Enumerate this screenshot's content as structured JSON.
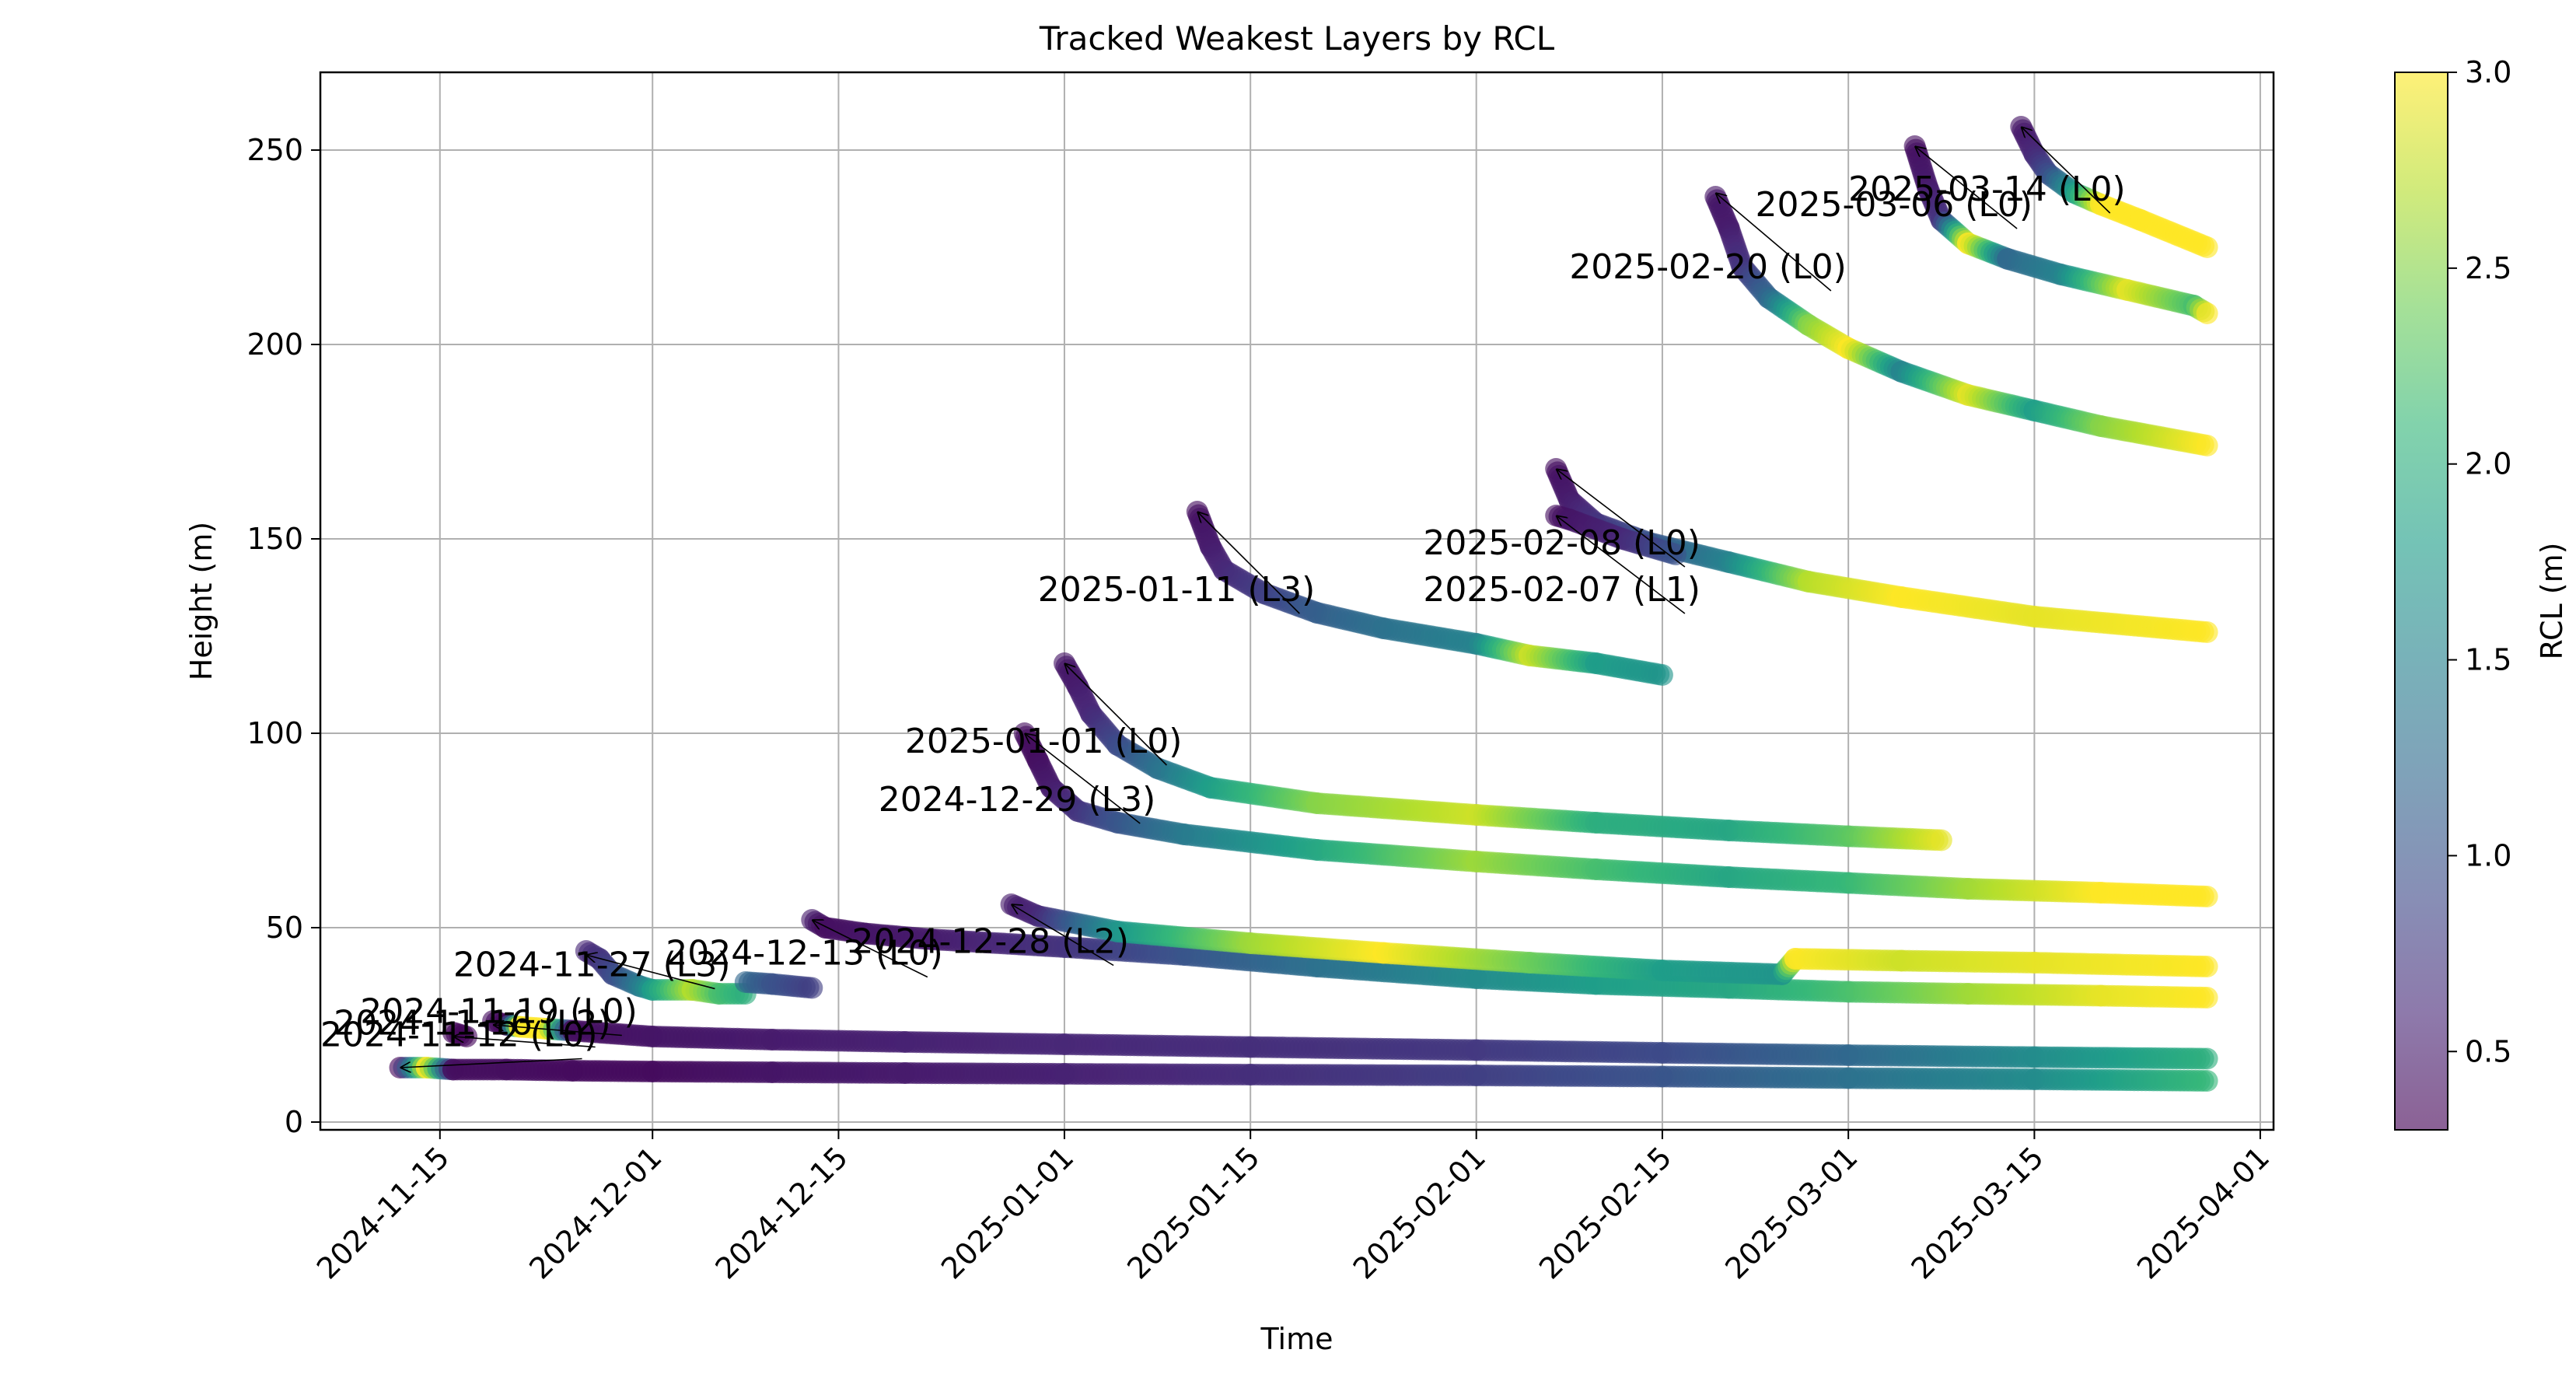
{
  "chart_data": {
    "type": "scatter",
    "title": "Tracked Weakest Layers by RCL",
    "xlabel": "Time",
    "ylabel": "Height (m)",
    "xlim": [
      "2024-11-06",
      "2025-04-02"
    ],
    "ylim": [
      -2,
      270
    ],
    "x_ticks": [
      "2024-11-15",
      "2024-12-01",
      "2024-12-15",
      "2025-01-01",
      "2025-01-15",
      "2025-02-01",
      "2025-02-15",
      "2025-03-01",
      "2025-03-15",
      "2025-04-01"
    ],
    "y_ticks": [
      0,
      50,
      100,
      150,
      200,
      250
    ],
    "grid": true,
    "colorbar": {
      "label": "RCL (m)",
      "colormap": "viridis",
      "range": [
        0.3,
        3.0
      ],
      "ticks": [
        "0.5",
        "1.0",
        "1.5",
        "2.0",
        "2.5",
        "3.0"
      ],
      "tick_values": [
        0.5,
        1.0,
        1.5,
        2.0,
        2.5,
        3.0
      ]
    },
    "annotations": [
      {
        "text": "2024-11-12 (L0)",
        "text_x": "2024-11-06",
        "text_y": 17.5,
        "arrow_to_x": "2024-11-12",
        "arrow_to_y": 14
      },
      {
        "text": "2024-11-16 (L2)",
        "text_x": "2024-11-07",
        "text_y": 20.5,
        "arrow_to_x": "2024-11-16",
        "arrow_to_y": 22
      },
      {
        "text": "2024-11-19 (L0)",
        "text_x": "2024-11-09",
        "text_y": 23.5,
        "arrow_to_x": "2024-11-19",
        "arrow_to_y": 25
      },
      {
        "text": "2024-11-27 (L3)",
        "text_x": "2024-11-16",
        "text_y": 35.5,
        "arrow_to_x": "2024-11-26",
        "arrow_to_y": 43
      },
      {
        "text": "2024-12-13 (L0)",
        "text_x": "2024-12-02",
        "text_y": 38.5,
        "arrow_to_x": "2024-12-13",
        "arrow_to_y": 52
      },
      {
        "text": "2024-12-28 (L2)",
        "text_x": "2024-12-16",
        "text_y": 41.5,
        "arrow_to_x": "2024-12-28",
        "arrow_to_y": 56
      },
      {
        "text": "2024-12-29 (L3)",
        "text_x": "2024-12-18",
        "text_y": 78,
        "arrow_to_x": "2024-12-29",
        "arrow_to_y": 100
      },
      {
        "text": "2025-01-01 (L0)",
        "text_x": "2024-12-20",
        "text_y": 93,
        "arrow_to_x": "2025-01-01",
        "arrow_to_y": 118
      },
      {
        "text": "2025-01-11 (L3)",
        "text_x": "2024-12-30",
        "text_y": 132,
        "arrow_to_x": "2025-01-11",
        "arrow_to_y": 157
      },
      {
        "text": "2025-02-08 (L0)",
        "text_x": "2025-01-28",
        "text_y": 144,
        "arrow_to_x": "2025-02-07",
        "arrow_to_y": 168
      },
      {
        "text": "2025-02-07 (L1)",
        "text_x": "2025-01-28",
        "text_y": 132,
        "arrow_to_x": "2025-02-07",
        "arrow_to_y": 156
      },
      {
        "text": "2025-02-20 (L0)",
        "text_x": "2025-02-08",
        "text_y": 215,
        "arrow_to_x": "2025-02-19",
        "arrow_to_y": 239
      },
      {
        "text": "2025-03-06 (L0)",
        "text_x": "2025-02-22",
        "text_y": 231,
        "arrow_to_x": "2025-03-06",
        "arrow_to_y": 251
      },
      {
        "text": "2025-03-14 (L0)",
        "text_x": "2025-03-01",
        "text_y": 235,
        "arrow_to_x": "2025-03-14",
        "arrow_to_y": 256
      }
    ],
    "series": [
      {
        "name": "2024-11-12 (L0)",
        "x": [
          "2024-11-12",
          "2024-11-14",
          "2024-11-16",
          "2024-11-20",
          "2024-11-25",
          "2024-12-01",
          "2024-12-10",
          "2024-12-20",
          "2025-01-01",
          "2025-01-15",
          "2025-02-01",
          "2025-02-15",
          "2025-03-01",
          "2025-03-15",
          "2025-03-28"
        ],
        "y": [
          14,
          14,
          13.5,
          13.5,
          13.2,
          13,
          12.8,
          12.6,
          12.4,
          12.2,
          12,
          11.7,
          11.3,
          11,
          10.6
        ],
        "rcl": [
          0.35,
          3.0,
          0.4,
          0.4,
          0.38,
          0.38,
          0.45,
          0.5,
          0.55,
          0.65,
          0.8,
          1.0,
          1.3,
          1.6,
          2.1
        ]
      },
      {
        "name": "2024-11-16 (L2)",
        "x": [
          "2024-11-16",
          "2024-11-17"
        ],
        "y": [
          23,
          22
        ],
        "rcl": [
          0.35,
          0.35
        ]
      },
      {
        "name": "2024-11-19 (L0)",
        "x": [
          "2024-11-19",
          "2024-11-20",
          "2024-11-21",
          "2024-11-23",
          "2024-11-25",
          "2024-12-01",
          "2024-12-10",
          "2024-12-20",
          "2025-01-01",
          "2025-01-15",
          "2025-02-01",
          "2025-02-15",
          "2025-03-01",
          "2025-03-15",
          "2025-03-28"
        ],
        "y": [
          26,
          25,
          24.5,
          24,
          23.5,
          22,
          21.2,
          20.6,
          20,
          19.3,
          18.5,
          17.8,
          17.2,
          16.7,
          16.3
        ],
        "rcl": [
          0.4,
          0.35,
          3.0,
          3.0,
          0.4,
          0.45,
          0.5,
          0.55,
          0.6,
          0.65,
          0.75,
          0.9,
          1.2,
          1.6,
          2.0
        ]
      },
      {
        "name": "2024-11-27 (L3)",
        "x": [
          "2024-11-26",
          "2024-11-27",
          "2024-11-28",
          "2024-11-30",
          "2024-12-01",
          "2024-12-04",
          "2024-12-06",
          "2024-12-08"
        ],
        "y": [
          44,
          42,
          38,
          35,
          34,
          34,
          33,
          33
        ],
        "rcl": [
          0.6,
          0.7,
          0.9,
          1.4,
          1.8,
          2.7,
          2.2,
          2.0
        ]
      },
      {
        "name": "2024-12-13 (L0)",
        "x": [
          "2024-12-08",
          "2024-12-10",
          "2024-12-13"
        ],
        "y": [
          36,
          35.5,
          34.5
        ],
        "rcl": [
          1.2,
          1.0,
          0.8
        ]
      },
      {
        "name": "2024-12-28 (L2)",
        "x": [
          "2024-12-13",
          "2024-12-14",
          "2024-12-17",
          "2024-12-22",
          "2025-01-01",
          "2025-01-10",
          "2025-01-20",
          "2025-02-01",
          "2025-02-10",
          "2025-02-20",
          "2025-03-01",
          "2025-03-10",
          "2025-03-20",
          "2025-03-28"
        ],
        "y": [
          52,
          50,
          48.5,
          47,
          45,
          43,
          40,
          37,
          35.5,
          34.5,
          33.5,
          33,
          32.5,
          32
        ],
        "rcl": [
          0.5,
          0.4,
          0.45,
          0.5,
          0.7,
          1.0,
          1.3,
          1.6,
          1.8,
          1.9,
          2.2,
          2.6,
          2.9,
          3.0
        ]
      },
      {
        "name": "2024-12-28 (L2) b",
        "x": [
          "2024-12-28",
          "2024-12-30",
          "2025-01-05",
          "2025-01-15",
          "2025-01-25",
          "2025-02-05",
          "2025-02-15",
          "2025-02-24",
          "2025-02-25",
          "2025-03-05",
          "2025-03-15",
          "2025-03-28"
        ],
        "y": [
          56,
          53,
          49,
          46,
          43.5,
          41,
          39,
          38,
          42,
          41.5,
          41,
          40
        ],
        "rcl": [
          0.5,
          0.6,
          1.7,
          2.6,
          3.0,
          2.4,
          1.8,
          1.7,
          3.0,
          2.8,
          2.9,
          3.0
        ]
      },
      {
        "name": "2024-12-29 (L3)",
        "x": [
          "2024-12-29",
          "2024-12-30",
          "2024-12-31",
          "2025-01-02",
          "2025-01-05",
          "2025-01-10",
          "2025-01-20",
          "2025-02-01",
          "2025-02-10",
          "2025-02-20",
          "2025-03-01",
          "2025-03-10",
          "2025-03-20",
          "2025-03-28"
        ],
        "y": [
          100,
          93,
          86,
          80,
          77,
          74,
          70,
          67,
          65,
          63,
          61.5,
          60,
          59,
          58
        ],
        "rcl": [
          0.4,
          0.4,
          0.5,
          0.7,
          1.0,
          1.4,
          1.9,
          2.6,
          2.2,
          1.9,
          2.1,
          2.6,
          3.0,
          3.0
        ]
      },
      {
        "name": "2025-01-01 (L0)",
        "x": [
          "2025-01-01",
          "2025-01-02",
          "2025-01-03",
          "2025-01-05",
          "2025-01-08",
          "2025-01-12",
          "2025-01-20",
          "2025-02-01",
          "2025-02-10",
          "2025-02-20",
          "2025-03-01",
          "2025-03-08"
        ],
        "y": [
          118,
          112,
          105,
          97,
          91,
          86,
          82,
          79,
          77,
          75,
          73.5,
          72.5
        ],
        "rcl": [
          0.45,
          0.5,
          0.6,
          0.9,
          1.3,
          1.8,
          2.5,
          2.8,
          2.0,
          1.9,
          2.3,
          2.9
        ]
      },
      {
        "name": "2025-01-11 (L3)",
        "x": [
          "2025-01-11",
          "2025-01-12",
          "2025-01-13",
          "2025-01-16",
          "2025-01-20",
          "2025-01-25",
          "2025-02-01",
          "2025-02-05",
          "2025-02-10",
          "2025-02-15"
        ],
        "y": [
          157,
          148,
          142,
          136,
          131,
          127,
          123,
          120,
          118,
          115
        ],
        "rcl": [
          0.4,
          0.5,
          0.6,
          0.8,
          1.1,
          1.3,
          1.5,
          2.8,
          1.8,
          1.7
        ]
      },
      {
        "name": "2025-02-08 (L0)",
        "x": [
          "2025-02-07",
          "2025-02-08",
          "2025-02-10",
          "2025-02-14",
          "2025-02-20",
          "2025-02-26",
          "2025-03-05",
          "2025-03-15",
          "2025-03-28"
        ],
        "y": [
          168,
          160,
          154,
          149,
          144,
          139,
          135,
          130,
          126
        ],
        "rcl": [
          0.4,
          0.5,
          0.7,
          1.0,
          1.5,
          2.7,
          3.0,
          2.9,
          3.0
        ]
      },
      {
        "name": "2025-02-07 (L1)",
        "x": [
          "2025-02-07",
          "2025-02-08",
          "2025-02-12",
          "2025-02-16"
        ],
        "y": [
          156,
          155,
          150,
          146
        ],
        "rcl": [
          0.4,
          0.45,
          0.6,
          1.0
        ]
      },
      {
        "name": "2025-02-20 (L0)",
        "x": [
          "2025-02-19",
          "2025-02-20",
          "2025-02-21",
          "2025-02-23",
          "2025-02-26",
          "2025-03-01",
          "2025-03-05",
          "2025-03-10",
          "2025-03-15",
          "2025-03-20",
          "2025-03-28"
        ],
        "y": [
          238,
          230,
          220,
          212,
          205,
          199,
          193,
          187,
          183,
          179,
          174
        ],
        "rcl": [
          0.45,
          0.5,
          0.7,
          1.2,
          2.5,
          3.0,
          1.5,
          2.9,
          1.8,
          2.5,
          3.0
        ]
      },
      {
        "name": "2025-03-06 (L0)",
        "x": [
          "2025-03-06",
          "2025-03-07",
          "2025-03-08",
          "2025-03-10",
          "2025-03-13",
          "2025-03-17",
          "2025-03-22",
          "2025-03-27",
          "2025-03-28"
        ],
        "y": [
          251,
          240,
          232,
          226,
          222,
          218,
          214,
          210,
          208
        ],
        "rcl": [
          0.4,
          0.5,
          0.7,
          3.0,
          1.2,
          1.5,
          2.9,
          2.2,
          3.0
        ]
      },
      {
        "name": "2025-03-14 (L0)",
        "x": [
          "2025-03-14",
          "2025-03-15",
          "2025-03-16",
          "2025-03-18",
          "2025-03-20",
          "2025-03-23",
          "2025-03-28"
        ],
        "y": [
          256,
          249,
          244,
          239,
          236,
          232,
          225
        ],
        "rcl": [
          0.45,
          0.6,
          0.9,
          1.8,
          3.0,
          3.0,
          3.0
        ]
      }
    ]
  }
}
